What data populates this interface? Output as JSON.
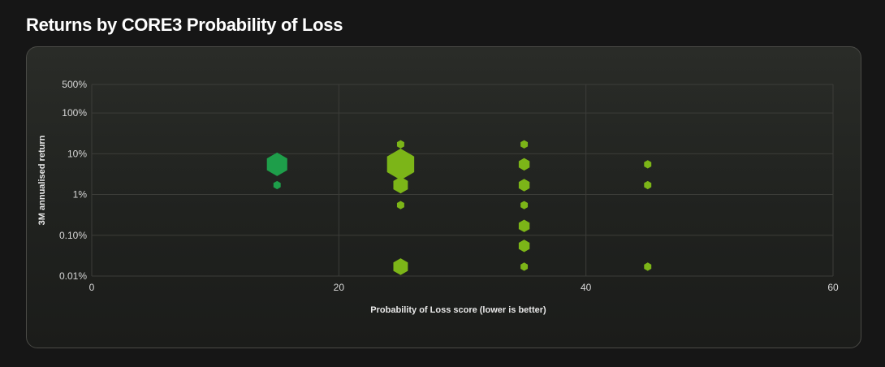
{
  "page": {
    "title": "Returns by CORE3 Probability of Loss"
  },
  "colors": {
    "background": "#161616",
    "grid": "#3c3d39",
    "dark_green": "#1e9e4a",
    "lime_green": "#7cb518"
  },
  "chart_data": {
    "type": "scatter",
    "title": "",
    "xlabel": "Probability of Loss score (lower is better)",
    "ylabel": "3M annualised return",
    "x_ticks": [
      0,
      20,
      40,
      60
    ],
    "xlim": [
      0,
      60
    ],
    "y_scale": "log",
    "y_ticks": [
      {
        "value": 0.0001,
        "label": "0.01%"
      },
      {
        "value": 0.001,
        "label": "0.10%"
      },
      {
        "value": 0.01,
        "label": "1%"
      },
      {
        "value": 0.1,
        "label": "10%"
      },
      {
        "value": 1,
        "label": "100%"
      },
      {
        "value": 5,
        "label": "500%"
      }
    ],
    "ylim": [
      0.0001,
      5
    ],
    "grid": true,
    "marker": "hexagon",
    "points": [
      {
        "x": 15,
        "y": 0.055,
        "size": 3,
        "color": "#1e9e4a"
      },
      {
        "x": 15,
        "y": 0.017,
        "size": 1,
        "color": "#1e9e4a"
      },
      {
        "x": 25,
        "y": 0.17,
        "size": 1,
        "color": "#7cb518"
      },
      {
        "x": 25,
        "y": 0.055,
        "size": 4,
        "color": "#7cb518"
      },
      {
        "x": 25,
        "y": 0.017,
        "size": 2,
        "color": "#7cb518"
      },
      {
        "x": 25,
        "y": 0.0055,
        "size": 1,
        "color": "#7cb518"
      },
      {
        "x": 25,
        "y": 0.00017,
        "size": 2,
        "color": "#7cb518"
      },
      {
        "x": 35,
        "y": 0.17,
        "size": 1,
        "color": "#7cb518"
      },
      {
        "x": 35,
        "y": 0.055,
        "size": 1.5,
        "color": "#7cb518"
      },
      {
        "x": 35,
        "y": 0.017,
        "size": 1.5,
        "color": "#7cb518"
      },
      {
        "x": 35,
        "y": 0.0055,
        "size": 1,
        "color": "#7cb518"
      },
      {
        "x": 35,
        "y": 0.0017,
        "size": 1.5,
        "color": "#7cb518"
      },
      {
        "x": 35,
        "y": 0.00055,
        "size": 1.5,
        "color": "#7cb518"
      },
      {
        "x": 35,
        "y": 0.00017,
        "size": 1,
        "color": "#7cb518"
      },
      {
        "x": 45,
        "y": 0.055,
        "size": 1,
        "color": "#7cb518"
      },
      {
        "x": 45,
        "y": 0.017,
        "size": 1,
        "color": "#7cb518"
      },
      {
        "x": 45,
        "y": 0.00017,
        "size": 1,
        "color": "#7cb518"
      }
    ]
  }
}
